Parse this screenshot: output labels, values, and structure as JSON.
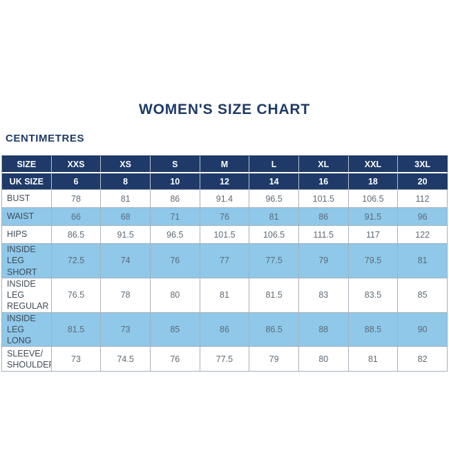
{
  "title": "WOMEN'S SIZE CHART",
  "unit_label": "CENTIMETRES",
  "colors": {
    "navy": "#1f3a68",
    "header_text": "#ffffff",
    "row_blue": "#8fc8e9",
    "row_white": "#ffffff",
    "label_text": "#404b56",
    "value_text": "#5d6a75",
    "grid_line": "#a6b0ba"
  },
  "chart_data": {
    "type": "table",
    "title": "WOMEN'S SIZE CHART",
    "units": "CENTIMETRES",
    "columns": [
      "SIZE",
      "XXS",
      "XS",
      "S",
      "M",
      "L",
      "XL",
      "XXL",
      "3XL"
    ],
    "uk_size_row": [
      "UK SIZE",
      "6",
      "8",
      "10",
      "12",
      "14",
      "16",
      "18",
      "20"
    ],
    "rows": [
      {
        "label": "BUST",
        "values": [
          "78",
          "81",
          "86",
          "91.4",
          "96.5",
          "101.5",
          "106.5",
          "112"
        ],
        "shaded": false
      },
      {
        "label": "WAIST",
        "values": [
          "66",
          "68",
          "71",
          "76",
          "81",
          "86",
          "91.5",
          "96"
        ],
        "shaded": true
      },
      {
        "label": "HIPS",
        "values": [
          "86.5",
          "91.5",
          "96.5",
          "101.5",
          "106.5",
          "111.5",
          "117",
          "122"
        ],
        "shaded": false
      },
      {
        "label": "INSIDE LEG\nSHORT",
        "values": [
          "72.5",
          "74",
          "76",
          "77",
          "77.5",
          "79",
          "79.5",
          "81"
        ],
        "shaded": true
      },
      {
        "label": "INSIDE LEG\nREGULAR",
        "values": [
          "76.5",
          "78",
          "80",
          "81",
          "81.5",
          "83",
          "83.5",
          "85"
        ],
        "shaded": false
      },
      {
        "label": "INSIDE LEG\nLONG",
        "values": [
          "81.5",
          "73",
          "85",
          "86",
          "86.5",
          "88",
          "88.5",
          "90"
        ],
        "shaded": true
      },
      {
        "label": "SLEEVE/\nSHOULDER",
        "values": [
          "73",
          "74.5",
          "76",
          "77.5",
          "79",
          "80",
          "81",
          "82"
        ],
        "shaded": false
      }
    ]
  }
}
